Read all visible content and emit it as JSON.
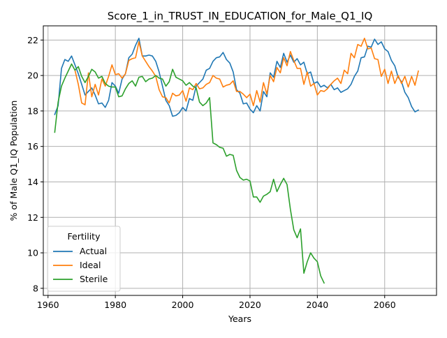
{
  "chart_data": {
    "type": "line",
    "title": "Score_1_in_TRUST_IN_EDUCATION_for_Male_Q1_IQ",
    "xlabel": "Years",
    "ylabel": "% of Male Q1_IQ Population",
    "xlim": [
      1958.6,
      2075.4
    ],
    "ylim": [
      7.6,
      22.8
    ],
    "xticks": [
      1960,
      1980,
      2000,
      2020,
      2040,
      2060
    ],
    "yticks": [
      8,
      10,
      12,
      14,
      16,
      18,
      20,
      22
    ],
    "grid": true,
    "legend": {
      "title": "Fertility",
      "placement": "lower-left",
      "entries": [
        "Actual",
        "Ideal",
        "Sterile"
      ]
    },
    "colors": {
      "Actual": "#1f77b4",
      "Ideal": "#ff7f0e",
      "Sterile": "#2ca02c",
      "grid": "#b0b0b0",
      "frame": "#000000"
    },
    "series": [
      {
        "name": "Actual",
        "x": [
          1962,
          1963,
          1964,
          1965,
          1966,
          1967,
          1968,
          1969,
          1970,
          1971,
          1972,
          1973,
          1974,
          1975,
          1976,
          1977,
          1978,
          1979,
          1980,
          1981,
          1982,
          1983,
          1984,
          1985,
          1986,
          1987,
          1988,
          1989,
          1990,
          1991,
          1992,
          1993,
          1994,
          1995,
          1996,
          1997,
          1998,
          1999,
          2000,
          2001,
          2002,
          2003,
          2004,
          2005,
          2006,
          2007,
          2008,
          2009,
          2010,
          2011,
          2012,
          2013,
          2014,
          2015,
          2016,
          2017,
          2018,
          2019,
          2020,
          2021,
          2022,
          2023,
          2024,
          2025,
          2026,
          2027,
          2028,
          2029,
          2030,
          2031,
          2032,
          2033,
          2034,
          2035,
          2036,
          2037,
          2038,
          2039,
          2040,
          2041,
          2042,
          2043,
          2044,
          2045,
          2046,
          2047,
          2048,
          2049,
          2050,
          2051,
          2052,
          2053,
          2054,
          2055,
          2056,
          2057,
          2058,
          2059,
          2060,
          2061,
          2062,
          2063,
          2064,
          2065,
          2066,
          2067,
          2068,
          2069,
          2070
        ],
        "values": [
          17.8,
          18.3,
          20.4,
          20.9,
          20.8,
          21.1,
          20.6,
          20.1,
          19.5,
          18.9,
          19.1,
          19.3,
          18.9,
          18.4,
          18.45,
          18.2,
          18.6,
          19.6,
          19.4,
          19.0,
          19.8,
          20.1,
          21.0,
          21.2,
          21.7,
          22.1,
          21.1,
          21.1,
          21.15,
          21.1,
          20.8,
          20.2,
          19.4,
          18.6,
          18.3,
          17.7,
          17.75,
          17.9,
          18.2,
          18.0,
          18.7,
          18.6,
          19.4,
          19.6,
          19.8,
          20.3,
          20.4,
          20.8,
          21.0,
          21.05,
          21.3,
          20.9,
          20.7,
          20.2,
          19.2,
          19.0,
          18.4,
          18.45,
          18.1,
          17.9,
          18.3,
          18.0,
          19.1,
          18.8,
          20.15,
          19.9,
          20.8,
          20.45,
          21.25,
          20.75,
          21.15,
          20.75,
          20.95,
          20.6,
          20.75,
          20.1,
          20.2,
          19.55,
          19.65,
          19.35,
          19.45,
          19.3,
          19.5,
          19.2,
          19.3,
          19.05,
          19.15,
          19.25,
          19.5,
          19.95,
          20.25,
          21.0,
          21.05,
          21.65,
          21.6,
          22.05,
          21.75,
          21.9,
          21.5,
          21.35,
          20.85,
          20.55,
          19.9,
          19.65,
          19.05,
          18.75,
          18.25,
          17.95,
          18.05
        ]
      },
      {
        "name": "Ideal",
        "x": [
          1968,
          1969,
          1970,
          1971,
          1972,
          1973,
          1974,
          1975,
          1976,
          1977,
          1978,
          1979,
          1980,
          1981,
          1982,
          1983,
          1984,
          1985,
          1986,
          1987,
          1988,
          1989,
          1990,
          1991,
          1992,
          1993,
          1994,
          1995,
          1996,
          1997,
          1998,
          1999,
          2000,
          2001,
          2002,
          2003,
          2004,
          2005,
          2006,
          2007,
          2008,
          2009,
          2010,
          2011,
          2012,
          2013,
          2014,
          2015,
          2016,
          2017,
          2018,
          2019,
          2020,
          2021,
          2022,
          2023,
          2024,
          2025,
          2026,
          2027,
          2028,
          2029,
          2030,
          2031,
          2032,
          2033,
          2034,
          2035,
          2036,
          2037,
          2038,
          2039,
          2040,
          2041,
          2042,
          2043,
          2044,
          2045,
          2046,
          2047,
          2048,
          2049,
          2050,
          2051,
          2052,
          2053,
          2054,
          2055,
          2056,
          2057,
          2058,
          2059,
          2060,
          2061,
          2062,
          2063,
          2064,
          2065,
          2066,
          2067,
          2068,
          2069,
          2070
        ],
        "values": [
          20.3,
          19.5,
          18.45,
          18.35,
          20.15,
          18.8,
          19.5,
          18.9,
          19.8,
          19.4,
          19.95,
          20.6,
          20.05,
          20.1,
          19.85,
          20.1,
          20.85,
          20.95,
          21.0,
          21.9,
          21.1,
          20.8,
          20.5,
          20.25,
          19.95,
          19.2,
          18.8,
          18.75,
          18.45,
          19.0,
          18.85,
          18.9,
          19.15,
          18.55,
          19.3,
          19.2,
          19.55,
          19.25,
          19.3,
          19.5,
          19.6,
          20.0,
          19.85,
          19.8,
          19.35,
          19.45,
          19.5,
          19.7,
          19.1,
          19.1,
          18.95,
          18.75,
          18.95,
          18.3,
          19.15,
          18.5,
          19.6,
          18.95,
          20.0,
          19.65,
          20.45,
          20.15,
          21.0,
          20.55,
          21.35,
          20.85,
          20.4,
          20.4,
          19.5,
          20.2,
          19.4,
          19.55,
          18.9,
          19.15,
          19.1,
          19.25,
          19.5,
          19.7,
          19.85,
          19.55,
          20.3,
          20.1,
          21.25,
          21.0,
          21.75,
          21.65,
          22.1,
          21.5,
          21.55,
          20.95,
          20.9,
          19.95,
          20.35,
          19.55,
          20.25,
          19.55,
          20.0,
          19.55,
          19.95,
          19.35,
          19.95,
          19.45,
          20.25
        ]
      },
      {
        "name": "Sterile",
        "x": [
          1962,
          1963,
          1964,
          1965,
          1966,
          1967,
          1968,
          1969,
          1970,
          1971,
          1972,
          1973,
          1974,
          1975,
          1976,
          1977,
          1978,
          1979,
          1980,
          1981,
          1982,
          1983,
          1984,
          1985,
          1986,
          1987,
          1988,
          1989,
          1990,
          1991,
          1992,
          1993,
          1994,
          1995,
          1996,
          1997,
          1998,
          1999,
          2000,
          2001,
          2002,
          2003,
          2004,
          2005,
          2006,
          2007,
          2008,
          2009,
          2010,
          2011,
          2012,
          2013,
          2014,
          2015,
          2016,
          2017,
          2018,
          2019,
          2020,
          2021,
          2022,
          2023,
          2024,
          2025,
          2026,
          2027,
          2028,
          2029,
          2030,
          2031,
          2032,
          2033,
          2034,
          2035,
          2036,
          2037,
          2038,
          2039,
          2040,
          2041,
          2042
        ],
        "values": [
          16.8,
          18.5,
          19.4,
          19.85,
          20.25,
          20.65,
          20.3,
          20.5,
          19.95,
          19.6,
          19.95,
          20.35,
          20.2,
          19.85,
          19.95,
          19.55,
          19.4,
          19.35,
          19.35,
          18.8,
          18.85,
          19.25,
          19.55,
          19.7,
          19.4,
          19.9,
          19.95,
          19.65,
          19.8,
          19.85,
          20.0,
          19.85,
          19.8,
          19.4,
          19.65,
          20.35,
          19.9,
          19.8,
          19.7,
          19.45,
          19.6,
          19.4,
          19.3,
          18.5,
          18.3,
          18.45,
          18.75,
          16.2,
          16.1,
          15.95,
          15.9,
          15.45,
          15.55,
          15.5,
          14.65,
          14.25,
          14.1,
          14.15,
          14.05,
          13.15,
          13.15,
          12.85,
          13.2,
          13.3,
          13.45,
          14.15,
          13.45,
          13.85,
          14.2,
          13.85,
          12.45,
          11.3,
          10.85,
          11.35,
          8.85,
          9.5,
          10.0,
          9.7,
          9.5,
          8.7,
          8.3
        ]
      }
    ]
  }
}
